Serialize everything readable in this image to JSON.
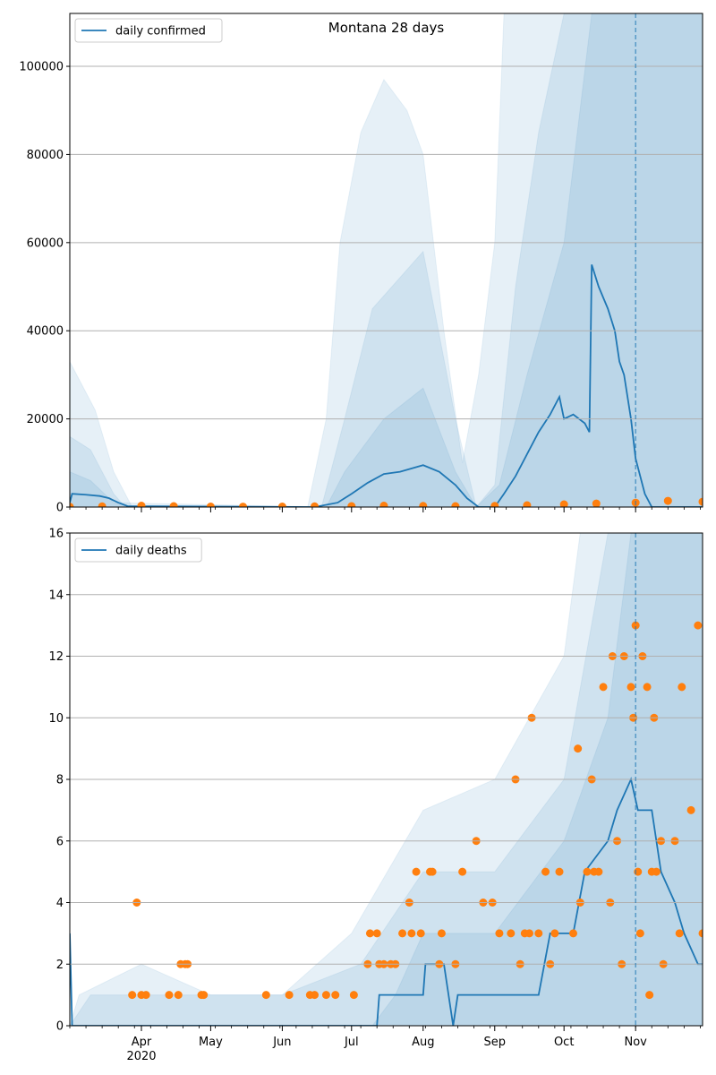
{
  "colors": {
    "line": "#1f77b4",
    "points": "#ff7f0e",
    "band": "#1f77b4",
    "grid": "#b0b0b0",
    "axis": "#000000"
  },
  "x_axis": {
    "start": "2020-03-01",
    "end": "2020-11-30",
    "month_labels": [
      {
        "date": "2020-04-01",
        "label": "Apr"
      },
      {
        "date": "2020-05-01",
        "label": "May"
      },
      {
        "date": "2020-06-01",
        "label": "Jun"
      },
      {
        "date": "2020-07-01",
        "label": "Jul"
      },
      {
        "date": "2020-08-01",
        "label": "Aug"
      },
      {
        "date": "2020-09-01",
        "label": "Sep"
      },
      {
        "date": "2020-10-01",
        "label": "Oct"
      },
      {
        "date": "2020-11-01",
        "label": "Nov"
      }
    ],
    "year_label": "2020",
    "forecast_date": "2020-11-01"
  },
  "chart_data": [
    {
      "type": "line",
      "title": "Montana 28 days",
      "legend": {
        "label": "daily confirmed",
        "position": "top-left"
      },
      "ylim": [
        0,
        112000
      ],
      "yticks": [
        0,
        20000,
        40000,
        60000,
        80000,
        100000
      ],
      "grid": "y",
      "model_line": [
        {
          "x": "2020-03-01",
          "y": 1000
        },
        {
          "x": "2020-03-02",
          "y": 3000
        },
        {
          "x": "2020-03-08",
          "y": 2800
        },
        {
          "x": "2020-03-14",
          "y": 2500
        },
        {
          "x": "2020-03-18",
          "y": 2000
        },
        {
          "x": "2020-03-22",
          "y": 1000
        },
        {
          "x": "2020-03-26",
          "y": 200
        },
        {
          "x": "2020-06-15",
          "y": 0
        },
        {
          "x": "2020-06-25",
          "y": 1000
        },
        {
          "x": "2020-07-01",
          "y": 3000
        },
        {
          "x": "2020-07-08",
          "y": 5500
        },
        {
          "x": "2020-07-15",
          "y": 7500
        },
        {
          "x": "2020-07-22",
          "y": 8000
        },
        {
          "x": "2020-08-01",
          "y": 9500
        },
        {
          "x": "2020-08-08",
          "y": 8000
        },
        {
          "x": "2020-08-15",
          "y": 5000
        },
        {
          "x": "2020-08-20",
          "y": 2000
        },
        {
          "x": "2020-08-25",
          "y": 0
        },
        {
          "x": "2020-09-01",
          "y": 0
        },
        {
          "x": "2020-09-05",
          "y": 3000
        },
        {
          "x": "2020-09-10",
          "y": 7000
        },
        {
          "x": "2020-09-15",
          "y": 12000
        },
        {
          "x": "2020-09-20",
          "y": 17000
        },
        {
          "x": "2020-09-25",
          "y": 21000
        },
        {
          "x": "2020-09-29",
          "y": 25000
        },
        {
          "x": "2020-10-01",
          "y": 20000
        },
        {
          "x": "2020-10-05",
          "y": 21000
        },
        {
          "x": "2020-10-10",
          "y": 19000
        },
        {
          "x": "2020-10-12",
          "y": 17000
        },
        {
          "x": "2020-10-13",
          "y": 55000
        },
        {
          "x": "2020-10-16",
          "y": 50000
        },
        {
          "x": "2020-10-20",
          "y": 45000
        },
        {
          "x": "2020-10-23",
          "y": 40000
        },
        {
          "x": "2020-10-25",
          "y": 33000
        },
        {
          "x": "2020-10-27",
          "y": 30000
        },
        {
          "x": "2020-10-30",
          "y": 20000
        },
        {
          "x": "2020-11-01",
          "y": 11000
        },
        {
          "x": "2020-11-05",
          "y": 3000
        },
        {
          "x": "2020-11-08",
          "y": 0
        },
        {
          "x": "2020-11-30",
          "y": 0
        }
      ],
      "band_outer": [
        {
          "x": "2020-03-01",
          "y": 33000
        },
        {
          "x": "2020-03-05",
          "y": 29000
        },
        {
          "x": "2020-03-12",
          "y": 22000
        },
        {
          "x": "2020-03-20",
          "y": 8000
        },
        {
          "x": "2020-03-28",
          "y": 0
        },
        {
          "x": "2020-06-12",
          "y": 0
        },
        {
          "x": "2020-06-20",
          "y": 20000
        },
        {
          "x": "2020-06-26",
          "y": 60000
        },
        {
          "x": "2020-07-05",
          "y": 85000
        },
        {
          "x": "2020-07-15",
          "y": 97000
        },
        {
          "x": "2020-07-25",
          "y": 90000
        },
        {
          "x": "2020-08-01",
          "y": 80000
        },
        {
          "x": "2020-08-10",
          "y": 40000
        },
        {
          "x": "2020-08-18",
          "y": 10000
        },
        {
          "x": "2020-08-25",
          "y": 30000
        },
        {
          "x": "2020-09-01",
          "y": 60000
        },
        {
          "x": "2020-09-05",
          "y": 112000
        },
        {
          "x": "2020-11-30",
          "y": 112000
        }
      ],
      "band_middle": [
        {
          "x": "2020-03-01",
          "y": 16000
        },
        {
          "x": "2020-03-10",
          "y": 13000
        },
        {
          "x": "2020-03-20",
          "y": 3000
        },
        {
          "x": "2020-03-25",
          "y": 0
        },
        {
          "x": "2020-06-18",
          "y": 0
        },
        {
          "x": "2020-06-28",
          "y": 20000
        },
        {
          "x": "2020-07-10",
          "y": 45000
        },
        {
          "x": "2020-08-01",
          "y": 58000
        },
        {
          "x": "2020-08-15",
          "y": 20000
        },
        {
          "x": "2020-08-24",
          "y": 0
        },
        {
          "x": "2020-09-01",
          "y": 5000
        },
        {
          "x": "2020-09-10",
          "y": 50000
        },
        {
          "x": "2020-09-20",
          "y": 85000
        },
        {
          "x": "2020-10-01",
          "y": 112000
        },
        {
          "x": "2020-11-30",
          "y": 112000
        }
      ],
      "band_inner": [
        {
          "x": "2020-03-01",
          "y": 8000
        },
        {
          "x": "2020-03-10",
          "y": 6000
        },
        {
          "x": "2020-03-20",
          "y": 1000
        },
        {
          "x": "2020-06-20",
          "y": 0
        },
        {
          "x": "2020-06-28",
          "y": 8000
        },
        {
          "x": "2020-07-15",
          "y": 20000
        },
        {
          "x": "2020-08-01",
          "y": 27000
        },
        {
          "x": "2020-08-15",
          "y": 8000
        },
        {
          "x": "2020-08-24",
          "y": 0
        },
        {
          "x": "2020-09-03",
          "y": 5000
        },
        {
          "x": "2020-09-15",
          "y": 30000
        },
        {
          "x": "2020-10-01",
          "y": 60000
        },
        {
          "x": "2020-10-13",
          "y": 112000
        },
        {
          "x": "2020-11-30",
          "y": 112000
        }
      ],
      "observed_points": [
        {
          "x": "2020-03-01",
          "y": 50
        },
        {
          "x": "2020-03-15",
          "y": 150
        },
        {
          "x": "2020-04-01",
          "y": 300
        },
        {
          "x": "2020-04-15",
          "y": 200
        },
        {
          "x": "2020-05-01",
          "y": 100
        },
        {
          "x": "2020-05-15",
          "y": 80
        },
        {
          "x": "2020-06-01",
          "y": 100
        },
        {
          "x": "2020-06-15",
          "y": 150
        },
        {
          "x": "2020-07-01",
          "y": 200
        },
        {
          "x": "2020-07-15",
          "y": 300
        },
        {
          "x": "2020-08-01",
          "y": 250
        },
        {
          "x": "2020-08-15",
          "y": 200
        },
        {
          "x": "2020-09-01",
          "y": 250
        },
        {
          "x": "2020-09-15",
          "y": 400
        },
        {
          "x": "2020-10-01",
          "y": 600
        },
        {
          "x": "2020-10-15",
          "y": 800
        },
        {
          "x": "2020-11-01",
          "y": 1000
        },
        {
          "x": "2020-11-15",
          "y": 1400
        },
        {
          "x": "2020-11-30",
          "y": 1200
        }
      ]
    },
    {
      "type": "line",
      "title": "",
      "legend": {
        "label": "daily deaths",
        "position": "top-left"
      },
      "ylim": [
        0,
        16
      ],
      "yticks": [
        0,
        2,
        4,
        6,
        8,
        10,
        12,
        14,
        16
      ],
      "grid": "y",
      "model_line": [
        {
          "x": "2020-03-01",
          "y": 3
        },
        {
          "x": "2020-03-02",
          "y": 0
        },
        {
          "x": "2020-07-12",
          "y": 0
        },
        {
          "x": "2020-07-13",
          "y": 1
        },
        {
          "x": "2020-08-01",
          "y": 1
        },
        {
          "x": "2020-08-02",
          "y": 2
        },
        {
          "x": "2020-08-10",
          "y": 2
        },
        {
          "x": "2020-08-14",
          "y": 0
        },
        {
          "x": "2020-08-16",
          "y": 1
        },
        {
          "x": "2020-09-10",
          "y": 1
        },
        {
          "x": "2020-09-20",
          "y": 1
        },
        {
          "x": "2020-09-25",
          "y": 3
        },
        {
          "x": "2020-10-05",
          "y": 3
        },
        {
          "x": "2020-10-10",
          "y": 5
        },
        {
          "x": "2020-10-20",
          "y": 6
        },
        {
          "x": "2020-10-24",
          "y": 7
        },
        {
          "x": "2020-10-30",
          "y": 8
        },
        {
          "x": "2020-11-02",
          "y": 7
        },
        {
          "x": "2020-11-08",
          "y": 7
        },
        {
          "x": "2020-11-12",
          "y": 5
        },
        {
          "x": "2020-11-18",
          "y": 4
        },
        {
          "x": "2020-11-22",
          "y": 3
        },
        {
          "x": "2020-11-28",
          "y": 2
        },
        {
          "x": "2020-11-30",
          "y": 2
        }
      ],
      "band_outer": [
        {
          "x": "2020-03-01",
          "y": 0
        },
        {
          "x": "2020-03-05",
          "y": 1
        },
        {
          "x": "2020-04-01",
          "y": 2
        },
        {
          "x": "2020-05-01",
          "y": 1
        },
        {
          "x": "2020-06-01",
          "y": 1
        },
        {
          "x": "2020-07-01",
          "y": 3
        },
        {
          "x": "2020-08-01",
          "y": 7
        },
        {
          "x": "2020-09-01",
          "y": 8
        },
        {
          "x": "2020-10-01",
          "y": 12
        },
        {
          "x": "2020-10-08",
          "y": 16
        },
        {
          "x": "2020-11-30",
          "y": 16
        }
      ],
      "band_middle": [
        {
          "x": "2020-03-01",
          "y": 0
        },
        {
          "x": "2020-03-10",
          "y": 1
        },
        {
          "x": "2020-06-01",
          "y": 1
        },
        {
          "x": "2020-07-05",
          "y": 2
        },
        {
          "x": "2020-08-01",
          "y": 5
        },
        {
          "x": "2020-09-01",
          "y": 5
        },
        {
          "x": "2020-10-01",
          "y": 8
        },
        {
          "x": "2020-10-20",
          "y": 16
        },
        {
          "x": "2020-11-30",
          "y": 16
        }
      ],
      "band_inner": [
        {
          "x": "2020-07-10",
          "y": 0
        },
        {
          "x": "2020-07-20",
          "y": 1
        },
        {
          "x": "2020-08-01",
          "y": 3
        },
        {
          "x": "2020-09-01",
          "y": 3
        },
        {
          "x": "2020-10-01",
          "y": 6
        },
        {
          "x": "2020-10-20",
          "y": 10
        },
        {
          "x": "2020-10-30",
          "y": 16
        },
        {
          "x": "2020-11-30",
          "y": 16
        }
      ],
      "observed_points": [
        {
          "x": "2020-03-28",
          "y": 1
        },
        {
          "x": "2020-03-30",
          "y": 4
        },
        {
          "x": "2020-04-01",
          "y": 1
        },
        {
          "x": "2020-04-03",
          "y": 1
        },
        {
          "x": "2020-04-13",
          "y": 1
        },
        {
          "x": "2020-04-17",
          "y": 1
        },
        {
          "x": "2020-04-18",
          "y": 2
        },
        {
          "x": "2020-04-20",
          "y": 2
        },
        {
          "x": "2020-04-21",
          "y": 2
        },
        {
          "x": "2020-04-27",
          "y": 1
        },
        {
          "x": "2020-04-28",
          "y": 1
        },
        {
          "x": "2020-05-25",
          "y": 1
        },
        {
          "x": "2020-06-04",
          "y": 1
        },
        {
          "x": "2020-06-13",
          "y": 1
        },
        {
          "x": "2020-06-15",
          "y": 1
        },
        {
          "x": "2020-06-20",
          "y": 1
        },
        {
          "x": "2020-06-24",
          "y": 1
        },
        {
          "x": "2020-07-02",
          "y": 1
        },
        {
          "x": "2020-07-08",
          "y": 2
        },
        {
          "x": "2020-07-09",
          "y": 3
        },
        {
          "x": "2020-07-12",
          "y": 3
        },
        {
          "x": "2020-07-13",
          "y": 2
        },
        {
          "x": "2020-07-15",
          "y": 2
        },
        {
          "x": "2020-07-18",
          "y": 2
        },
        {
          "x": "2020-07-20",
          "y": 2
        },
        {
          "x": "2020-07-23",
          "y": 3
        },
        {
          "x": "2020-07-26",
          "y": 4
        },
        {
          "x": "2020-07-27",
          "y": 3
        },
        {
          "x": "2020-07-29",
          "y": 5
        },
        {
          "x": "2020-07-31",
          "y": 3
        },
        {
          "x": "2020-08-04",
          "y": 5
        },
        {
          "x": "2020-08-05",
          "y": 5
        },
        {
          "x": "2020-08-08",
          "y": 2
        },
        {
          "x": "2020-08-09",
          "y": 3
        },
        {
          "x": "2020-08-15",
          "y": 2
        },
        {
          "x": "2020-08-18",
          "y": 5
        },
        {
          "x": "2020-08-24",
          "y": 6
        },
        {
          "x": "2020-08-27",
          "y": 4
        },
        {
          "x": "2020-08-31",
          "y": 4
        },
        {
          "x": "2020-09-03",
          "y": 3
        },
        {
          "x": "2020-09-08",
          "y": 3
        },
        {
          "x": "2020-09-10",
          "y": 8
        },
        {
          "x": "2020-09-12",
          "y": 2
        },
        {
          "x": "2020-09-14",
          "y": 3
        },
        {
          "x": "2020-09-16",
          "y": 3
        },
        {
          "x": "2020-09-17",
          "y": 10
        },
        {
          "x": "2020-09-20",
          "y": 3
        },
        {
          "x": "2020-09-23",
          "y": 5
        },
        {
          "x": "2020-09-25",
          "y": 2
        },
        {
          "x": "2020-09-27",
          "y": 3
        },
        {
          "x": "2020-09-29",
          "y": 5
        },
        {
          "x": "2020-10-05",
          "y": 3
        },
        {
          "x": "2020-10-07",
          "y": 9
        },
        {
          "x": "2020-10-08",
          "y": 4
        },
        {
          "x": "2020-10-11",
          "y": 5
        },
        {
          "x": "2020-10-13",
          "y": 8
        },
        {
          "x": "2020-10-14",
          "y": 5
        },
        {
          "x": "2020-10-16",
          "y": 5
        },
        {
          "x": "2020-10-18",
          "y": 11
        },
        {
          "x": "2020-10-21",
          "y": 4
        },
        {
          "x": "2020-10-22",
          "y": 12
        },
        {
          "x": "2020-10-24",
          "y": 6
        },
        {
          "x": "2020-10-26",
          "y": 2
        },
        {
          "x": "2020-10-27",
          "y": 12
        },
        {
          "x": "2020-10-30",
          "y": 11
        },
        {
          "x": "2020-10-31",
          "y": 10
        },
        {
          "x": "2020-11-01",
          "y": 13
        },
        {
          "x": "2020-11-02",
          "y": 5
        },
        {
          "x": "2020-11-03",
          "y": 3
        },
        {
          "x": "2020-11-04",
          "y": 12
        },
        {
          "x": "2020-11-06",
          "y": 11
        },
        {
          "x": "2020-11-07",
          "y": 1
        },
        {
          "x": "2020-11-08",
          "y": 5
        },
        {
          "x": "2020-11-09",
          "y": 10
        },
        {
          "x": "2020-11-10",
          "y": 5
        },
        {
          "x": "2020-11-12",
          "y": 6
        },
        {
          "x": "2020-11-13",
          "y": 2
        },
        {
          "x": "2020-11-18",
          "y": 6
        },
        {
          "x": "2020-11-20",
          "y": 3
        },
        {
          "x": "2020-11-21",
          "y": 11
        },
        {
          "x": "2020-11-25",
          "y": 7
        },
        {
          "x": "2020-11-28",
          "y": 13
        },
        {
          "x": "2020-11-30",
          "y": 3
        }
      ]
    }
  ]
}
